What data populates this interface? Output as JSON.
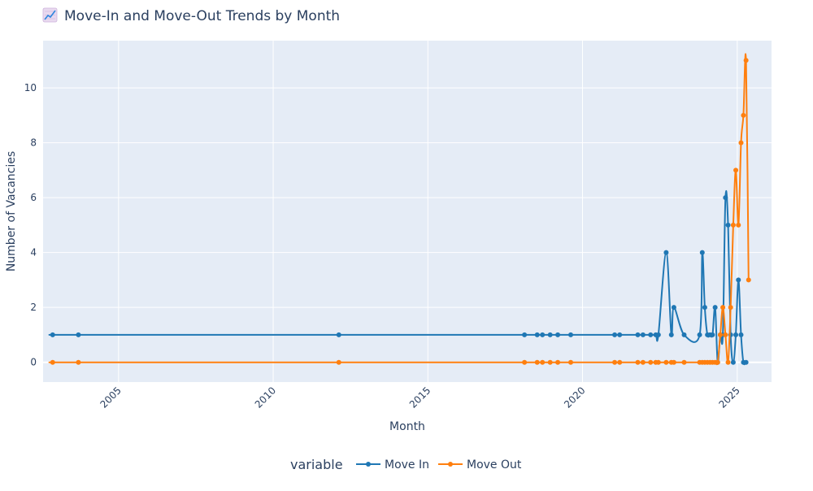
{
  "chart_data": {
    "type": "line",
    "title": "Move-In and Move-Out Trends by Month",
    "title_icon": "chart-increasing-icon",
    "xlabel": "Month",
    "ylabel": "Number of Vacancies",
    "x_ticks": [
      "2005",
      "2010",
      "2015",
      "2020",
      "2025"
    ],
    "y_ticks": [
      "0",
      "2",
      "4",
      "6",
      "8",
      "10"
    ],
    "xlim": [
      "2002-07-25",
      "2026-02-10"
    ],
    "ylim": [
      -0.72,
      11.72
    ],
    "grid": true,
    "legend": {
      "title": "variable",
      "placement": "bottom-center",
      "entries": [
        "Move In",
        "Move Out"
      ]
    },
    "x": [
      "2002-11",
      "2003-09",
      "2012-02",
      "2018-02",
      "2018-07",
      "2018-09",
      "2018-12",
      "2019-03",
      "2019-08",
      "2021-01",
      "2021-03",
      "2021-10",
      "2021-12",
      "2022-03",
      "2022-05",
      "2022-06",
      "2022-09",
      "2022-11",
      "2022-12",
      "2023-04",
      "2023-10",
      "2023-11",
      "2023-12",
      "2024-01",
      "2024-02",
      "2024-03",
      "2024-04",
      "2024-05",
      "2024-06",
      "2024-07",
      "2024-08",
      "2024-09",
      "2024-10",
      "2024-11",
      "2024-12",
      "2025-01",
      "2025-02",
      "2025-03",
      "2025-04",
      "2025-05"
    ],
    "series": [
      {
        "name": "Move In",
        "color": "#1f77b4",
        "values": [
          1,
          1,
          1,
          1,
          1,
          1,
          1,
          1,
          1,
          1,
          1,
          1,
          1,
          1,
          1,
          1,
          4,
          1,
          2,
          1,
          1,
          4,
          2,
          1,
          1,
          1,
          2,
          0,
          1,
          1,
          6,
          5,
          1,
          0,
          1,
          3,
          1,
          0,
          0,
          null
        ]
      },
      {
        "name": "Move Out",
        "color": "#ff7f0e",
        "values": [
          0,
          0,
          0,
          0,
          0,
          0,
          0,
          0,
          0,
          0,
          0,
          0,
          0,
          0,
          0,
          0,
          0,
          0,
          0,
          0,
          0,
          0,
          0,
          0,
          0,
          0,
          0,
          0,
          1,
          2,
          1,
          0,
          2,
          5,
          7,
          5,
          8,
          9,
          11,
          3
        ]
      }
    ]
  }
}
